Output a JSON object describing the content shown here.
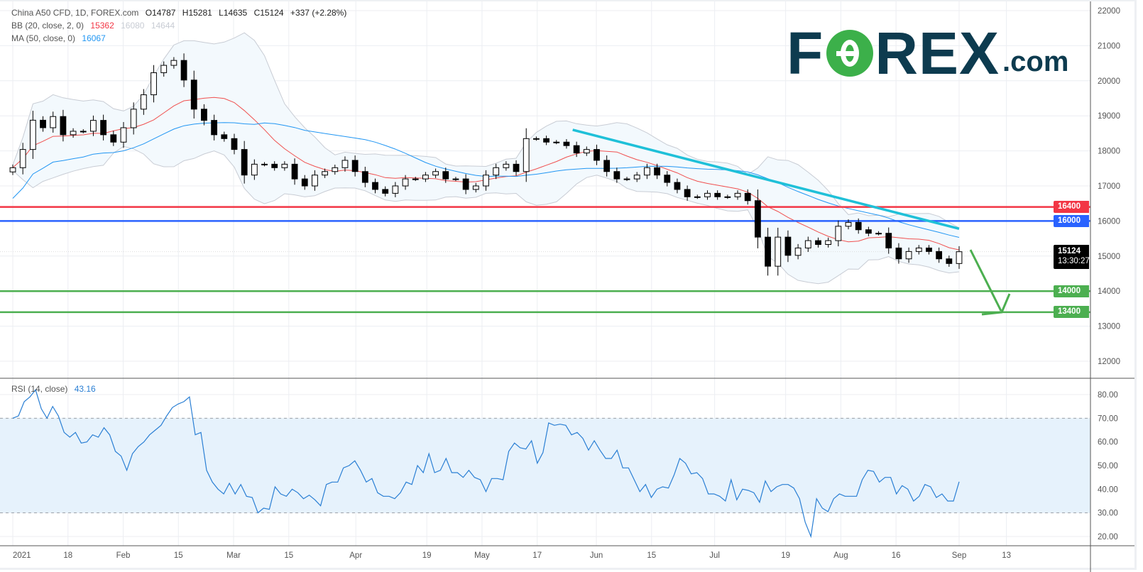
{
  "header": {
    "symbol": "China A50 CFD, 1D, FOREX.com",
    "open": "O14787",
    "high": "H15281",
    "low": "L14635",
    "close": "C15124",
    "change": "+337 (+2.28%)",
    "bb_label": "BB (20, close, 2, 0)",
    "bb_basis": "15362",
    "bb_upper": "16080",
    "bb_lower": "14644",
    "ma_label": "MA (50, close, 0)",
    "ma_value": "16067",
    "rsi_label": "RSI (14, close)",
    "rsi_value": "43.16"
  },
  "logo": {
    "text": "FOREX.com",
    "f": "F",
    "rex": "REX",
    "com": ".com"
  },
  "colors": {
    "bb_basis": "#f0504f",
    "ma": "#2196f3",
    "band": "#c8ccd4",
    "band_fill": "#f3f9fd",
    "resist_red": "#f23645",
    "support_blue": "#2962ff",
    "target_green": "#4caf50",
    "trend": "#1fc0d8",
    "rsi": "#2a7fd4"
  },
  "price_tags": [
    {
      "label": "16400",
      "price": 16400,
      "color": "#f23645"
    },
    {
      "label": "16000",
      "price": 16000,
      "color": "#2962ff"
    },
    {
      "label": "14000",
      "price": 14000,
      "color": "#4caf50"
    },
    {
      "label": "13400",
      "price": 13400,
      "color": "#4caf50"
    }
  ],
  "last_price": {
    "label": "15124",
    "countdown": "13:30:27",
    "price": 15124
  },
  "chart_data": [
    {
      "type": "candlestick",
      "title": "China A50 CFD, 1D, FOREX.com",
      "ylim": [
        12000,
        22000
      ],
      "yticks": [
        "22000",
        "21000",
        "20000",
        "19000",
        "18000",
        "17000",
        "16000",
        "15000",
        "14000",
        "13000",
        "12000"
      ],
      "xticks": [
        {
          "label": "2021",
          "date": "2021-01-04"
        },
        {
          "label": "18",
          "date": "2021-01-18"
        },
        {
          "label": "Feb",
          "date": "2021-02-01"
        },
        {
          "label": "15",
          "date": "2021-02-15"
        },
        {
          "label": "Mar",
          "date": "2021-03-01"
        },
        {
          "label": "15",
          "date": "2021-03-15"
        },
        {
          "label": "Apr",
          "date": "2021-04-01"
        },
        {
          "label": "19",
          "date": "2021-04-19"
        },
        {
          "label": "May",
          "date": "2021-05-03"
        },
        {
          "label": "17",
          "date": "2021-05-17"
        },
        {
          "label": "Jun",
          "date": "2021-06-01"
        },
        {
          "label": "15",
          "date": "2021-06-15"
        },
        {
          "label": "Jul",
          "date": "2021-07-01"
        },
        {
          "label": "19",
          "date": "2021-07-19"
        },
        {
          "label": "Aug",
          "date": "2021-08-02"
        },
        {
          "label": "16",
          "date": "2021-08-16"
        },
        {
          "label": "Sep",
          "date": "2021-09-01"
        },
        {
          "label": "13",
          "date": "2021-09-13"
        }
      ],
      "closes": [
        17520,
        18040,
        18875,
        18660,
        18980,
        18460,
        18560,
        18560,
        18870,
        18460,
        18250,
        18660,
        19190,
        19600,
        20230,
        20440,
        20580,
        20020,
        19190,
        18870,
        18460,
        18350,
        18040,
        17310,
        17620,
        17620,
        17520,
        17620,
        17200,
        17000,
        17310,
        17410,
        17520,
        17730,
        17410,
        17100,
        16900,
        16790,
        17000,
        17200,
        17200,
        17310,
        17410,
        17200,
        17200,
        16900,
        17000,
        17310,
        17520,
        17620,
        17410,
        18350,
        18350,
        18250,
        18250,
        18150,
        17940,
        18040,
        17730,
        17410,
        17200,
        17200,
        17310,
        17520,
        17310,
        17100,
        16900,
        16690,
        16690,
        16790,
        16690,
        16690,
        16790,
        16580,
        15540,
        14710,
        15540,
        15020,
        15230,
        15440,
        15330,
        15440,
        15850,
        15960,
        15750,
        15650,
        15650,
        15230,
        14920,
        15130,
        15230,
        15130,
        14920,
        14787,
        15124
      ],
      "last_bar": {
        "open": 14787,
        "high": 15281,
        "low": 14635,
        "close": 15124
      },
      "horizontal_lines": [
        16400,
        16000,
        14000,
        13400
      ],
      "trendline": {
        "from_date": "2021-05-26",
        "from_price": 18600,
        "to_date": "2021-09-01",
        "to_price": 15780
      },
      "indicators": [
        "BB (20, close, 2, 0)",
        "MA (50, close, 0)"
      ]
    },
    {
      "type": "line",
      "title": "RSI (14, close)",
      "ylim": [
        17,
        84
      ],
      "yticks": [
        "80.00",
        "70.00",
        "60.00",
        "50.00",
        "40.00",
        "30.00",
        "20.00"
      ],
      "bands": [
        30,
        70
      ],
      "values": [
        70,
        71,
        77,
        79,
        82,
        74,
        70,
        75,
        71,
        64,
        62,
        64,
        59.5,
        60,
        63,
        62,
        66,
        63,
        56,
        54,
        48,
        55,
        58,
        60,
        63,
        65,
        67,
        71,
        74.5,
        76,
        77,
        79,
        63,
        64,
        48,
        43,
        40,
        38,
        42.5,
        38,
        42,
        37,
        36.5,
        30,
        32,
        31.5,
        41,
        38,
        37,
        40,
        38.5,
        36,
        37.5,
        35.5,
        33,
        42,
        43,
        43,
        49,
        50,
        52,
        48,
        43,
        44.5,
        38.5,
        37,
        37,
        36,
        38.5,
        43,
        42,
        50,
        47,
        55,
        47,
        48,
        53,
        47,
        47,
        45,
        48,
        45,
        44,
        39,
        44.5,
        44.5,
        44,
        56,
        59.5,
        57.5,
        57,
        60.5,
        51,
        55.5,
        68,
        67,
        67.5,
        67,
        63,
        64,
        61.5,
        56.5,
        60.5,
        56.5,
        53,
        53,
        56.5,
        49,
        49,
        44,
        39,
        42,
        36.5,
        40,
        41,
        40.5,
        46,
        53,
        51,
        46.5,
        47,
        44.5,
        38,
        38,
        37,
        35,
        44,
        35.5,
        40,
        39.5,
        38.5,
        34.5,
        43.5,
        39,
        41,
        42,
        42,
        40.5,
        36,
        26,
        20,
        36,
        32,
        30.5,
        36,
        38,
        37,
        37,
        37,
        44,
        48,
        47.5,
        43,
        45,
        45,
        38,
        41.5,
        40,
        35,
        37,
        42,
        41,
        36.5,
        38,
        35,
        35,
        43.16
      ]
    }
  ]
}
